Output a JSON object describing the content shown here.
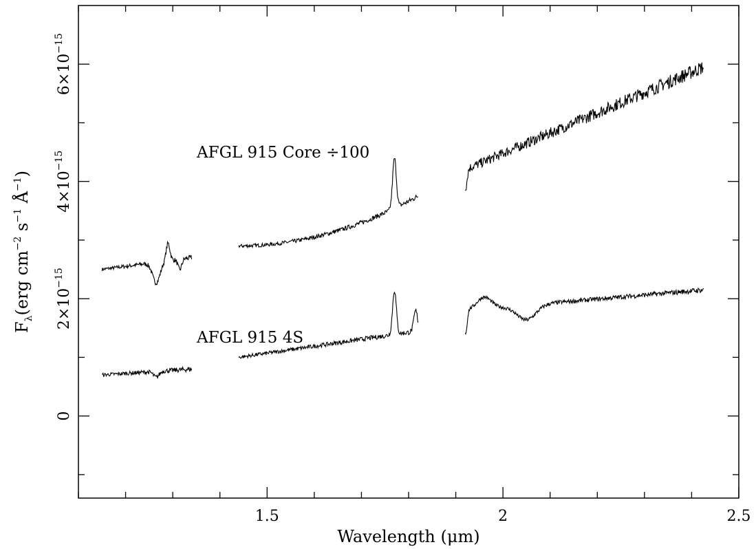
{
  "chart_data": {
    "type": "line",
    "xlabel": "Wavelength (μm)",
    "ylabel_parts": {
      "symbol": "F",
      "symbol_sub": "λ",
      "text1": "(erg cm",
      "exp1": "−2",
      "text2": " s",
      "exp2": "−1",
      "text3": " Å",
      "exp3": "−1",
      "text4": ")"
    },
    "xlim": [
      1.1,
      2.5
    ],
    "ylim": [
      -1.4e-15,
      7e-15
    ],
    "x_ticks": [
      {
        "value": 1.5,
        "label": "1.5"
      },
      {
        "value": 2.0,
        "label": "2"
      },
      {
        "value": 2.5,
        "label": "2.5"
      }
    ],
    "y_ticks": [
      {
        "value": 0,
        "label": "0",
        "base": "0",
        "exp": ""
      },
      {
        "value": 2e-15,
        "label": "2×10−15",
        "base": "2×10",
        "exp": "−15"
      },
      {
        "value": 4e-15,
        "label": "4×10−15",
        "base": "4×10",
        "exp": "−15"
      },
      {
        "value": 6e-15,
        "label": "6×10−15",
        "base": "6×10",
        "exp": "−15"
      }
    ],
    "grid": false,
    "series": [
      {
        "name": "AFGL 915 Core ÷100",
        "segments": [
          {
            "x_start": 1.15,
            "x_end": 1.34,
            "y_start": 2.5e-15,
            "y_end": 2.7e-15,
            "features": [
              {
                "x": 1.265,
                "dy": -3.5e-16,
                "w": 0.008
              },
              {
                "x": 1.29,
                "dy": 3e-16,
                "w": 0.004
              },
              {
                "x": 1.315,
                "dy": -1.8e-16,
                "w": 0.004
              }
            ]
          },
          {
            "x_start": 1.44,
            "x_end": 1.82,
            "y_start": 2.9e-15,
            "y_end": 3.75e-15,
            "features": [
              {
                "x": 1.77,
                "dy": 8.5e-16,
                "w": 0.004
              }
            ]
          },
          {
            "x_start": 1.92,
            "x_end": 2.425,
            "y_start": 4.2e-15,
            "y_end": 5.95e-15,
            "features": [
              {
                "x": 1.921,
                "dy": -3e-16,
                "w": 0.003
              }
            ]
          }
        ]
      },
      {
        "name": "AFGL 915 4S",
        "segments": [
          {
            "x_start": 1.15,
            "x_end": 1.34,
            "y_start": 7e-16,
            "y_end": 8e-16,
            "features": [
              {
                "x": 1.265,
                "dy": -1e-16,
                "w": 0.006
              }
            ]
          },
          {
            "x_start": 1.44,
            "x_end": 1.82,
            "y_start": 1e-15,
            "y_end": 1.45e-15,
            "features": [
              {
                "x": 1.77,
                "dy": 7.5e-16,
                "w": 0.004
              },
              {
                "x": 1.815,
                "dy": 3.5e-16,
                "w": 0.004
              }
            ]
          },
          {
            "x_start": 1.92,
            "x_end": 2.425,
            "y_start": 1.95e-15,
            "y_end": 1.95e-15,
            "features": [
              {
                "x": 1.921,
                "dy": -4e-16,
                "w": 0.003
              },
              {
                "x": 1.96,
                "dy": 2e-16,
                "w": 0.015
              },
              {
                "x": 2.05,
                "dy": -2.5e-16,
                "w": 0.02
              }
            ]
          }
        ]
      }
    ],
    "annotations": [
      {
        "text": "AFGL 915 Core ÷100",
        "x": 1.35,
        "y": 4.7e-15
      },
      {
        "text": "AFGL 915 4S",
        "x": 1.35,
        "y": 1.8e-15
      }
    ]
  }
}
